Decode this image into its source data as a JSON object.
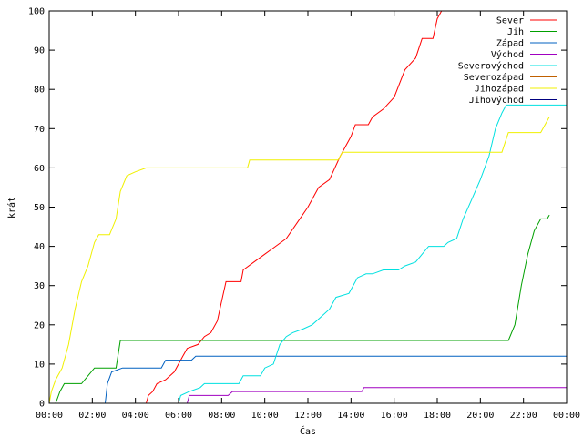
{
  "chart_data": {
    "type": "line",
    "xlabel": "Čas",
    "ylabel": "krát",
    "ylim": [
      0,
      100
    ],
    "yticks": [
      0,
      10,
      20,
      30,
      40,
      50,
      60,
      70,
      80,
      90,
      100
    ],
    "xlim": [
      0,
      24
    ],
    "xticks": [
      {
        "v": 0,
        "label": "00:00"
      },
      {
        "v": 2,
        "label": "02:00"
      },
      {
        "v": 4,
        "label": "04:00"
      },
      {
        "v": 6,
        "label": "06:00"
      },
      {
        "v": 8,
        "label": "08:00"
      },
      {
        "v": 10,
        "label": "10:00"
      },
      {
        "v": 12,
        "label": "12:00"
      },
      {
        "v": 14,
        "label": "14:00"
      },
      {
        "v": 16,
        "label": "16:00"
      },
      {
        "v": 18,
        "label": "18:00"
      },
      {
        "v": 20,
        "label": "20:00"
      },
      {
        "v": 22,
        "label": "22:00"
      },
      {
        "v": 24,
        "label": "00:00"
      }
    ],
    "grid": false,
    "legend_position": "top-right",
    "series": [
      {
        "name": "Sever",
        "color": "#ff0000",
        "points": [
          [
            4.5,
            0
          ],
          [
            4.6,
            2
          ],
          [
            4.8,
            3
          ],
          [
            5.0,
            5
          ],
          [
            5.4,
            6
          ],
          [
            5.8,
            8
          ],
          [
            6.2,
            12
          ],
          [
            6.4,
            14
          ],
          [
            6.9,
            15
          ],
          [
            7.2,
            17
          ],
          [
            7.5,
            18
          ],
          [
            7.8,
            21
          ],
          [
            8.0,
            26
          ],
          [
            8.2,
            31
          ],
          [
            8.9,
            31
          ],
          [
            9.0,
            34
          ],
          [
            9.5,
            36
          ],
          [
            10.0,
            38
          ],
          [
            10.5,
            40
          ],
          [
            11.0,
            42
          ],
          [
            11.5,
            46
          ],
          [
            12.0,
            50
          ],
          [
            12.5,
            55
          ],
          [
            13.0,
            57
          ],
          [
            13.5,
            63
          ],
          [
            14.0,
            68
          ],
          [
            14.2,
            71
          ],
          [
            14.8,
            71
          ],
          [
            15.0,
            73
          ],
          [
            15.5,
            75
          ],
          [
            16.0,
            78
          ],
          [
            16.5,
            85
          ],
          [
            17.0,
            88
          ],
          [
            17.3,
            93
          ],
          [
            17.8,
            93
          ],
          [
            18.0,
            98
          ],
          [
            18.2,
            100
          ]
        ]
      },
      {
        "name": "Jih",
        "color": "#00a000",
        "points": [
          [
            0.0,
            0
          ],
          [
            0.3,
            0
          ],
          [
            0.5,
            3
          ],
          [
            0.7,
            5
          ],
          [
            1.5,
            5
          ],
          [
            1.8,
            7
          ],
          [
            2.1,
            9
          ],
          [
            3.1,
            9
          ],
          [
            3.3,
            16
          ],
          [
            21.3,
            16
          ],
          [
            21.6,
            20
          ],
          [
            21.9,
            30
          ],
          [
            22.2,
            38
          ],
          [
            22.5,
            44
          ],
          [
            22.8,
            47
          ],
          [
            23.1,
            47
          ],
          [
            23.2,
            48
          ]
        ]
      },
      {
        "name": "Západ",
        "color": "#0060c0",
        "points": [
          [
            2.6,
            0
          ],
          [
            2.7,
            5
          ],
          [
            2.9,
            8
          ],
          [
            3.4,
            9
          ],
          [
            5.2,
            9
          ],
          [
            5.4,
            11
          ],
          [
            6.6,
            11
          ],
          [
            6.8,
            12
          ],
          [
            24.0,
            12
          ]
        ]
      },
      {
        "name": "Východ",
        "color": "#a000c0",
        "points": [
          [
            6.4,
            0
          ],
          [
            6.5,
            2
          ],
          [
            8.3,
            2
          ],
          [
            8.5,
            3
          ],
          [
            14.5,
            3
          ],
          [
            14.6,
            4
          ],
          [
            24.0,
            4
          ]
        ]
      },
      {
        "name": "Severovýchod",
        "color": "#00e0e0",
        "points": [
          [
            6.0,
            0
          ],
          [
            6.1,
            2
          ],
          [
            6.5,
            3
          ],
          [
            7.0,
            4
          ],
          [
            7.2,
            5
          ],
          [
            8.8,
            5
          ],
          [
            9.0,
            7
          ],
          [
            9.8,
            7
          ],
          [
            10.0,
            9
          ],
          [
            10.4,
            10
          ],
          [
            10.7,
            15
          ],
          [
            11.0,
            17
          ],
          [
            11.3,
            18
          ],
          [
            11.8,
            19
          ],
          [
            12.2,
            20
          ],
          [
            12.6,
            22
          ],
          [
            13.0,
            24
          ],
          [
            13.3,
            27
          ],
          [
            13.9,
            28
          ],
          [
            14.1,
            30
          ],
          [
            14.3,
            32
          ],
          [
            14.7,
            33
          ],
          [
            15.0,
            33
          ],
          [
            15.5,
            34
          ],
          [
            16.2,
            34
          ],
          [
            16.5,
            35
          ],
          [
            17.0,
            36
          ],
          [
            17.3,
            38
          ],
          [
            17.6,
            40
          ],
          [
            18.3,
            40
          ],
          [
            18.5,
            41
          ],
          [
            18.9,
            42
          ],
          [
            19.2,
            47
          ],
          [
            19.6,
            52
          ],
          [
            20.0,
            57
          ],
          [
            20.4,
            63
          ],
          [
            20.7,
            70
          ],
          [
            21.0,
            74
          ],
          [
            21.2,
            76
          ],
          [
            24.0,
            76
          ]
        ]
      },
      {
        "name": "Severozápad",
        "color": "#c06000",
        "points": []
      },
      {
        "name": "Jihozápad",
        "color": "#f0f000",
        "points": [
          [
            0.0,
            0
          ],
          [
            0.1,
            3
          ],
          [
            0.3,
            6
          ],
          [
            0.6,
            9
          ],
          [
            0.9,
            15
          ],
          [
            1.2,
            24
          ],
          [
            1.5,
            31
          ],
          [
            1.8,
            35
          ],
          [
            2.1,
            41
          ],
          [
            2.3,
            43
          ],
          [
            2.8,
            43
          ],
          [
            3.1,
            47
          ],
          [
            3.3,
            54
          ],
          [
            3.6,
            58
          ],
          [
            4.0,
            59
          ],
          [
            4.5,
            60
          ],
          [
            9.2,
            60
          ],
          [
            9.3,
            62
          ],
          [
            13.4,
            62
          ],
          [
            13.6,
            64
          ],
          [
            21.0,
            64
          ],
          [
            21.3,
            69
          ],
          [
            22.8,
            69
          ],
          [
            23.2,
            73
          ]
        ]
      },
      {
        "name": "Jihovýchod",
        "color": "#000080",
        "points": []
      }
    ]
  }
}
